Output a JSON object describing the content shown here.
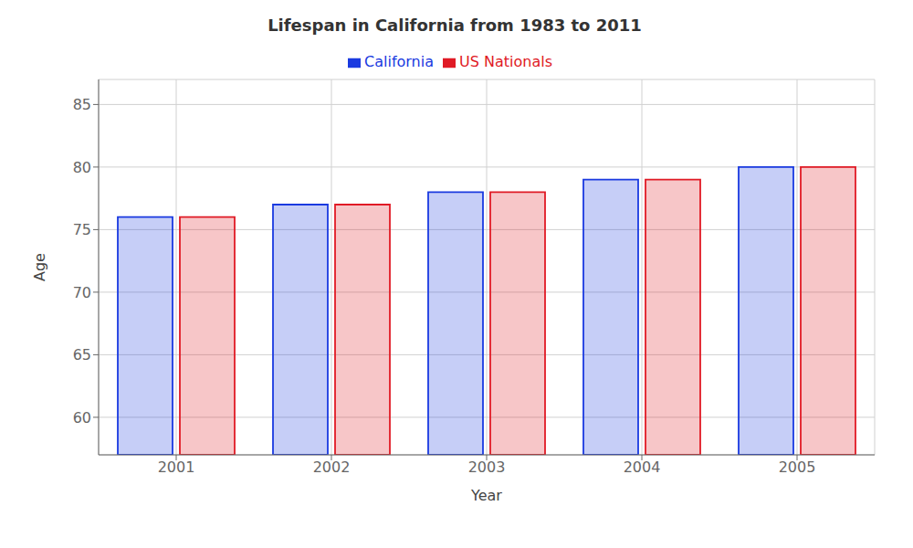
{
  "chart_data": {
    "type": "bar",
    "title": "Lifespan in California from 1983 to 2011",
    "xlabel": "Year",
    "ylabel": "Age",
    "categories": [
      2001,
      2002,
      2003,
      2004,
      2005
    ],
    "series": [
      {
        "name": "California",
        "color": "#1a3ae0",
        "values": [
          76.0,
          77.0,
          78.0,
          79.0,
          80.0
        ]
      },
      {
        "name": "US Nationals",
        "color": "#e01a25",
        "values": [
          76.0,
          77.0,
          78.0,
          79.0,
          80.0
        ]
      }
    ],
    "ylim": [
      57,
      87
    ],
    "yticks": [
      60,
      65,
      70,
      75,
      80,
      85
    ],
    "grid": true,
    "legend": "top"
  }
}
